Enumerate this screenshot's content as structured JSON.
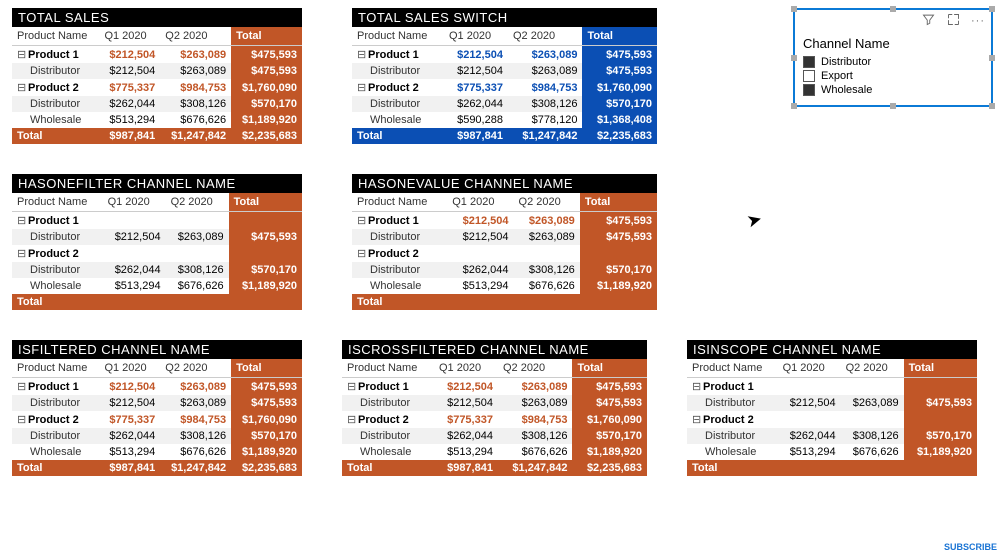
{
  "colors": {
    "orange": "#c15627",
    "blue": "#0b4fb4",
    "black": "#000000",
    "alt": "#f1f1f1"
  },
  "columns": {
    "name": "Product Name",
    "q1": "Q1 2020",
    "q2": "Q2 2020",
    "total": "Total"
  },
  "slicer": {
    "title": "Channel Name",
    "items": [
      {
        "label": "Distributor",
        "checked": true
      },
      {
        "label": "Export",
        "checked": false
      },
      {
        "label": "Wholesale",
        "checked": true
      }
    ]
  },
  "tables": {
    "total_sales": {
      "title": "TOTAL SALES",
      "theme": "orange",
      "val_style": "orange",
      "rows": [
        {
          "t": "p",
          "label": "Product 1",
          "q1": "$212,504",
          "q2": "$263,089",
          "tot": "$475,593"
        },
        {
          "t": "s",
          "label": "Distributor",
          "q1": "$212,504",
          "q2": "$263,089",
          "tot": "$475,593"
        },
        {
          "t": "p",
          "label": "Product 2",
          "q1": "$775,337",
          "q2": "$984,753",
          "tot": "$1,760,090"
        },
        {
          "t": "s",
          "label": "Distributor",
          "q1": "$262,044",
          "q2": "$308,126",
          "tot": "$570,170"
        },
        {
          "t": "s",
          "label": "Wholesale",
          "q1": "$513,294",
          "q2": "$676,626",
          "tot": "$1,189,920"
        }
      ],
      "grand": {
        "label": "Total",
        "q1": "$987,841",
        "q2": "$1,247,842",
        "tot": "$2,235,683"
      }
    },
    "total_sales_switch": {
      "title": "TOTAL SALES SWITCH",
      "theme": "blue",
      "val_style": "blue",
      "rows": [
        {
          "t": "p",
          "label": "Product 1",
          "q1": "$212,504",
          "q2": "$263,089",
          "tot": "$475,593"
        },
        {
          "t": "s",
          "label": "Distributor",
          "q1": "$212,504",
          "q2": "$263,089",
          "tot": "$475,593"
        },
        {
          "t": "p",
          "label": "Product 2",
          "q1": "$775,337",
          "q2": "$984,753",
          "tot": "$1,760,090"
        },
        {
          "t": "s",
          "label": "Distributor",
          "q1": "$262,044",
          "q2": "$308,126",
          "tot": "$570,170"
        },
        {
          "t": "s",
          "label": "Wholesale",
          "q1": "$590,288",
          "q2": "$778,120",
          "tot": "$1,368,408"
        }
      ],
      "grand": {
        "label": "Total",
        "q1": "$987,841",
        "q2": "$1,247,842",
        "tot": "$2,235,683"
      }
    },
    "hasonefilter": {
      "title": "HASONEFILTER CHANNEL NAME",
      "theme": "orange",
      "val_style": "plain",
      "rows": [
        {
          "t": "p",
          "label": "Product 1",
          "q1": "",
          "q2": "",
          "tot": ""
        },
        {
          "t": "s",
          "label": "Distributor",
          "q1": "$212,504",
          "q2": "$263,089",
          "tot": "$475,593"
        },
        {
          "t": "p",
          "label": "Product 2",
          "q1": "",
          "q2": "",
          "tot": ""
        },
        {
          "t": "s",
          "label": "Distributor",
          "q1": "$262,044",
          "q2": "$308,126",
          "tot": "$570,170"
        },
        {
          "t": "s",
          "label": "Wholesale",
          "q1": "$513,294",
          "q2": "$676,626",
          "tot": "$1,189,920"
        }
      ],
      "grand": {
        "label": "Total",
        "q1": "",
        "q2": "",
        "tot": ""
      }
    },
    "hasonevalue": {
      "title": "HASONEVALUE CHANNEL NAME",
      "theme": "orange",
      "val_style": "orange",
      "rows": [
        {
          "t": "p",
          "label": "Product 1",
          "q1": "$212,504",
          "q2": "$263,089",
          "tot": "$475,593",
          "pstyle": true
        },
        {
          "t": "s",
          "label": "Distributor",
          "q1": "$212,504",
          "q2": "$263,089",
          "tot": "$475,593"
        },
        {
          "t": "p",
          "label": "Product 2",
          "q1": "",
          "q2": "",
          "tot": ""
        },
        {
          "t": "s",
          "label": "Distributor",
          "q1": "$262,044",
          "q2": "$308,126",
          "tot": "$570,170"
        },
        {
          "t": "s",
          "label": "Wholesale",
          "q1": "$513,294",
          "q2": "$676,626",
          "tot": "$1,189,920"
        }
      ],
      "grand": {
        "label": "Total",
        "q1": "",
        "q2": "",
        "tot": ""
      }
    },
    "isfiltered": {
      "title": "ISFILTERED CHANNEL NAME",
      "theme": "orange",
      "val_style": "orange",
      "rows": [
        {
          "t": "p",
          "label": "Product 1",
          "q1": "$212,504",
          "q2": "$263,089",
          "tot": "$475,593"
        },
        {
          "t": "s",
          "label": "Distributor",
          "q1": "$212,504",
          "q2": "$263,089",
          "tot": "$475,593"
        },
        {
          "t": "p",
          "label": "Product 2",
          "q1": "$775,337",
          "q2": "$984,753",
          "tot": "$1,760,090"
        },
        {
          "t": "s",
          "label": "Distributor",
          "q1": "$262,044",
          "q2": "$308,126",
          "tot": "$570,170"
        },
        {
          "t": "s",
          "label": "Wholesale",
          "q1": "$513,294",
          "q2": "$676,626",
          "tot": "$1,189,920"
        }
      ],
      "grand": {
        "label": "Total",
        "q1": "$987,841",
        "q2": "$1,247,842",
        "tot": "$2,235,683"
      }
    },
    "iscrossfiltered": {
      "title": "ISCROSSFILTERED CHANNEL NAME",
      "theme": "orange",
      "val_style": "orange",
      "rows": [
        {
          "t": "p",
          "label": "Product 1",
          "q1": "$212,504",
          "q2": "$263,089",
          "tot": "$475,593"
        },
        {
          "t": "s",
          "label": "Distributor",
          "q1": "$212,504",
          "q2": "$263,089",
          "tot": "$475,593"
        },
        {
          "t": "p",
          "label": "Product 2",
          "q1": "$775,337",
          "q2": "$984,753",
          "tot": "$1,760,090"
        },
        {
          "t": "s",
          "label": "Distributor",
          "q1": "$262,044",
          "q2": "$308,126",
          "tot": "$570,170"
        },
        {
          "t": "s",
          "label": "Wholesale",
          "q1": "$513,294",
          "q2": "$676,626",
          "tot": "$1,189,920"
        }
      ],
      "grand": {
        "label": "Total",
        "q1": "$987,841",
        "q2": "$1,247,842",
        "tot": "$2,235,683"
      }
    },
    "isinscope": {
      "title": "ISINSCOPE CHANNEL NAME",
      "theme": "orange",
      "val_style": "plain",
      "rows": [
        {
          "t": "p",
          "label": "Product 1",
          "q1": "",
          "q2": "",
          "tot": ""
        },
        {
          "t": "s",
          "label": "Distributor",
          "q1": "$212,504",
          "q2": "$263,089",
          "tot": "$475,593"
        },
        {
          "t": "p",
          "label": "Product 2",
          "q1": "",
          "q2": "",
          "tot": ""
        },
        {
          "t": "s",
          "label": "Distributor",
          "q1": "$262,044",
          "q2": "$308,126",
          "tot": "$570,170"
        },
        {
          "t": "s",
          "label": "Wholesale",
          "q1": "$513,294",
          "q2": "$676,626",
          "tot": "$1,189,920"
        }
      ],
      "grand": {
        "label": "Total",
        "q1": "",
        "q2": "",
        "tot": ""
      }
    }
  },
  "subscribe": "SUBSCRIBE"
}
